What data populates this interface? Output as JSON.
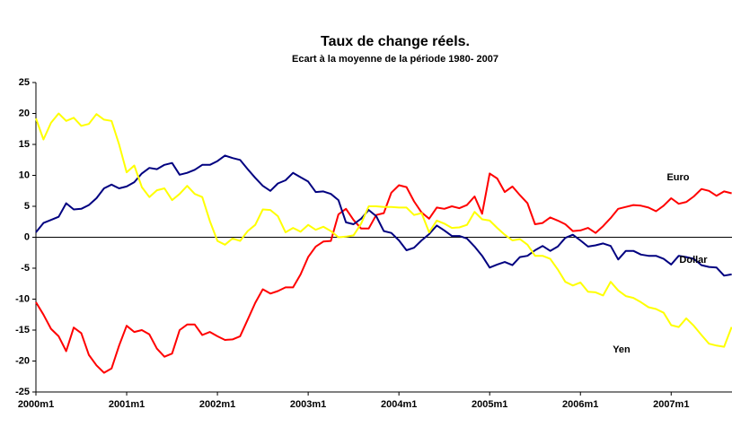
{
  "chart_data": {
    "type": "line",
    "title": "Taux de change réels.",
    "subtitle": "Ecart à la moyenne de la période 1980- 2007",
    "categories": [
      "2000m1",
      null,
      null,
      null,
      null,
      null,
      null,
      null,
      null,
      null,
      null,
      null,
      "2001m1",
      null,
      null,
      null,
      null,
      null,
      null,
      null,
      null,
      null,
      null,
      null,
      "2002m1",
      null,
      null,
      null,
      null,
      null,
      null,
      null,
      null,
      null,
      null,
      null,
      "2003m1",
      null,
      null,
      null,
      null,
      null,
      null,
      null,
      null,
      null,
      null,
      null,
      "2004m1",
      null,
      null,
      null,
      null,
      null,
      null,
      null,
      null,
      null,
      null,
      null,
      "2005m1",
      null,
      null,
      null,
      null,
      null,
      null,
      null,
      null,
      null,
      null,
      null,
      "2006m1",
      null,
      null,
      null,
      null,
      null,
      null,
      null,
      null,
      null,
      null,
      null,
      "2007m1",
      null,
      null,
      null,
      null,
      null,
      null,
      null,
      null
    ],
    "series": [
      {
        "name": "Euro",
        "color": "#ff0000",
        "values": [
          -10.5,
          -12.5,
          -14.8,
          -16,
          -18.4,
          -14.6,
          -15.5,
          -19,
          -20.7,
          -21.9,
          -21.2,
          -17.5,
          -14.3,
          -15.3,
          -15,
          -15.7,
          -18,
          -19.3,
          -18.8,
          -15,
          -14.1,
          -14.1,
          -15.8,
          -15.3,
          -16,
          -16.6,
          -16.5,
          -16,
          -13.3,
          -10.6,
          -8.4,
          -9.1,
          -8.7,
          -8.1,
          -8.1,
          -6,
          -3.2,
          -1.5,
          -0.7,
          -0.6,
          3.7,
          4.6,
          2.8,
          1.4,
          1.4,
          3.6,
          3.9,
          7.2,
          8.4,
          8.1,
          5.8,
          4,
          3,
          4.8,
          4.6,
          5,
          4.7,
          5.2,
          6.6,
          3.8,
          10.3,
          9.5,
          7.3,
          8.2,
          6.8,
          5.5,
          2.1,
          2.3,
          3.2,
          2.7,
          2.1,
          1,
          1.1,
          1.5,
          0.7,
          1.8,
          3.1,
          4.6,
          4.9,
          5.2,
          5.1,
          4.8,
          4.2,
          5.1,
          6.3,
          5.4,
          5.7,
          6.6,
          7.8,
          7.5,
          6.7,
          7.4,
          7.1
        ]
      },
      {
        "name": "Dollar",
        "color": "#000080",
        "values": [
          0.8,
          2.3,
          2.8,
          3.3,
          5.5,
          4.5,
          4.6,
          5.2,
          6.3,
          7.9,
          8.5,
          7.9,
          8.2,
          8.9,
          10.3,
          11.2,
          11,
          11.7,
          12,
          10.1,
          10.4,
          10.9,
          11.7,
          11.7,
          12.3,
          13.2,
          12.8,
          12.5,
          11,
          9.6,
          8.3,
          7.5,
          8.7,
          9.2,
          10.4,
          9.7,
          9,
          7.3,
          7.4,
          7,
          6,
          2.4,
          2.1,
          3,
          4.4,
          3.4,
          1,
          0.7,
          -0.5,
          -2.1,
          -1.7,
          -0.5,
          0.5,
          1.9,
          1.1,
          0.2,
          0.2,
          -0.2,
          -1.5,
          -3,
          -4.9,
          -4.4,
          -4,
          -4.5,
          -3.2,
          -3,
          -2.1,
          -1.4,
          -2.2,
          -1.5,
          -0.1,
          0.4,
          -0.5,
          -1.5,
          -1.3,
          -1,
          -1.4,
          -3.6,
          -2.2,
          -2.2,
          -2.8,
          -3,
          -3,
          -3.5,
          -4.4,
          -3,
          -3.2,
          -3.5,
          -4.5,
          -4.8,
          -4.9,
          -6.2,
          -6
        ]
      },
      {
        "name": "Yen",
        "color": "#ffff00",
        "values": [
          19.2,
          15.8,
          18.5,
          20,
          18.8,
          19.3,
          18,
          18.3,
          19.9,
          19,
          18.8,
          15,
          10.5,
          11.6,
          8.1,
          6.5,
          7.6,
          7.9,
          6,
          7,
          8.3,
          7,
          6.5,
          2.6,
          -0.6,
          -1.2,
          -0.2,
          -0.6,
          1,
          2,
          4.5,
          4.4,
          3.4,
          0.8,
          1.5,
          0.9,
          2,
          1.2,
          1.7,
          1,
          0,
          0.1,
          0.3,
          2.2,
          5,
          5,
          4.9,
          4.9,
          4.8,
          4.8,
          3.6,
          3.9,
          0.8,
          2.7,
          2.2,
          1.5,
          1.6,
          2,
          4.1,
          2.9,
          2.7,
          1.5,
          0.4,
          -0.5,
          -0.3,
          -1.2,
          -3,
          -3,
          -3.5,
          -5.2,
          -7.2,
          -7.8,
          -7.3,
          -8.8,
          -8.9,
          -9.4,
          -7.2,
          -8.6,
          -9.5,
          -9.8,
          -10.5,
          -11.3,
          -11.6,
          -12.2,
          -14.2,
          -14.5,
          -13.1,
          -14.3,
          -15.8,
          -17.2,
          -17.5,
          -17.7,
          -14.5
        ]
      }
    ],
    "ylim": [
      -25,
      25
    ],
    "yticks": [
      -25,
      -20,
      -15,
      -10,
      -5,
      0,
      5,
      10,
      15,
      20,
      25
    ]
  }
}
